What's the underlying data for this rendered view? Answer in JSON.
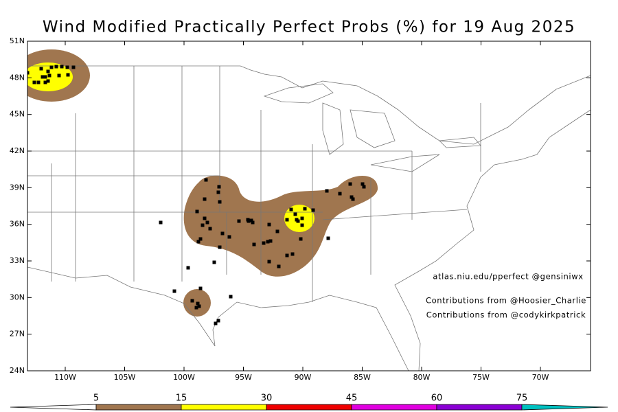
{
  "title": "Wind Modified Practically Perfect Probs (%) for 19 Aug 2025",
  "map": {
    "lat_ticks": [
      {
        "value": 51,
        "label": "51N"
      },
      {
        "value": 48,
        "label": "48N"
      },
      {
        "value": 45,
        "label": "45N"
      },
      {
        "value": 42,
        "label": "42N"
      },
      {
        "value": 39,
        "label": "39N"
      },
      {
        "value": 36,
        "label": "36N"
      },
      {
        "value": 33,
        "label": "33N"
      },
      {
        "value": 30,
        "label": "30N"
      },
      {
        "value": 27,
        "label": "27N"
      },
      {
        "value": 24,
        "label": "24N"
      }
    ],
    "lon_ticks": [
      {
        "value": -110,
        "label": "110W"
      },
      {
        "value": -105,
        "label": "105W"
      },
      {
        "value": -100,
        "label": "100W"
      },
      {
        "value": -95,
        "label": "95W"
      },
      {
        "value": -90,
        "label": "90W"
      },
      {
        "value": -85,
        "label": "85W"
      },
      {
        "value": -80,
        "label": "80W"
      },
      {
        "value": -75,
        "label": "75W"
      },
      {
        "value": -70,
        "label": "70W"
      }
    ]
  },
  "credits": [
    "atlas.niu.edu/pperfect @gensiniwx",
    "Contributions from @Hoosier_Charlie",
    "Contributions from @codykirkpatrick"
  ],
  "colorbar": {
    "levels": [
      5,
      15,
      30,
      45,
      60,
      75
    ],
    "colors": [
      "#ffffff",
      "#a0764f",
      "#ffff00",
      "#ee0000",
      "#e000e0",
      "#8a00d4",
      "#00c0c0"
    ]
  }
}
